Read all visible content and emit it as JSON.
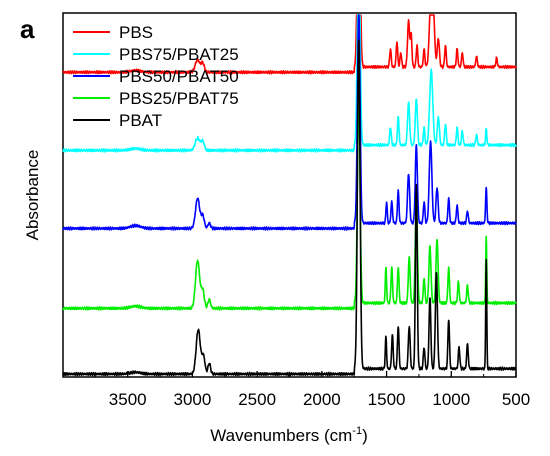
{
  "chart_data": {
    "type": "line",
    "panel_label": "a",
    "xlabel": "Wavenumbers (cm",
    "xlabel_sup": "-1",
    "xlabel_close": ")",
    "ylabel": "Absorbance",
    "xlim": [
      4000,
      500
    ],
    "x_reversed": true,
    "y_ticks_labeled": false,
    "x_ticks": [
      "3500",
      "3000",
      "2500",
      "2000",
      "1500",
      "1000",
      "500"
    ],
    "x_tick_values": [
      3500,
      3000,
      2500,
      2000,
      1500,
      1000,
      500
    ],
    "legend_position": "top-left",
    "series": [
      {
        "name": "PBS",
        "color": "#ff0000",
        "baseline": 8.5,
        "peaks": [
          [
            2960,
            0.35,
            18
          ],
          [
            2920,
            0.25,
            12
          ],
          [
            3440,
            0.05,
            40
          ],
          [
            1715,
            6.8,
            10
          ],
          [
            1470,
            0.5,
            6
          ],
          [
            1420,
            0.7,
            6
          ],
          [
            1390,
            0.4,
            6
          ],
          [
            1330,
            1.3,
            8
          ],
          [
            1310,
            0.9,
            6
          ],
          [
            1265,
            0.6,
            6
          ],
          [
            1210,
            0.5,
            6
          ],
          [
            1150,
            3.0,
            14
          ],
          [
            1100,
            0.8,
            8
          ],
          [
            1045,
            0.6,
            6
          ],
          [
            955,
            0.5,
            6
          ],
          [
            915,
            0.4,
            6
          ],
          [
            805,
            0.3,
            6
          ],
          [
            650,
            0.25,
            6
          ]
        ]
      },
      {
        "name": "PBS75/PBAT25",
        "color": "#00ffff",
        "baseline": 6.3,
        "peaks": [
          [
            2960,
            0.35,
            18
          ],
          [
            2920,
            0.25,
            12
          ],
          [
            3440,
            0.05,
            40
          ],
          [
            1715,
            6.2,
            10
          ],
          [
            1470,
            0.5,
            6
          ],
          [
            1410,
            0.8,
            6
          ],
          [
            1330,
            1.2,
            8
          ],
          [
            1270,
            1.3,
            8
          ],
          [
            1210,
            0.5,
            6
          ],
          [
            1155,
            2.1,
            12
          ],
          [
            1100,
            0.8,
            8
          ],
          [
            1045,
            0.6,
            6
          ],
          [
            955,
            0.5,
            6
          ],
          [
            915,
            0.4,
            6
          ],
          [
            805,
            0.3,
            6
          ],
          [
            730,
            0.45,
            5
          ]
        ]
      },
      {
        "name": "PBS50/PBAT50",
        "color": "#0000ff",
        "baseline": 4.1,
        "peaks": [
          [
            2960,
            0.85,
            16
          ],
          [
            2920,
            0.35,
            12
          ],
          [
            2870,
            0.15,
            10
          ],
          [
            3440,
            0.08,
            40
          ],
          [
            1715,
            6.0,
            10
          ],
          [
            1500,
            0.6,
            5
          ],
          [
            1460,
            0.6,
            6
          ],
          [
            1410,
            0.9,
            6
          ],
          [
            1330,
            1.4,
            8
          ],
          [
            1270,
            2.2,
            8
          ],
          [
            1210,
            0.6,
            6
          ],
          [
            1160,
            2.3,
            10
          ],
          [
            1110,
            1.0,
            8
          ],
          [
            1020,
            0.7,
            6
          ],
          [
            955,
            0.5,
            6
          ],
          [
            875,
            0.35,
            6
          ],
          [
            730,
            1.0,
            5
          ]
        ]
      },
      {
        "name": "PBS25/PBAT75",
        "color": "#00ee00",
        "baseline": 1.85,
        "peaks": [
          [
            2960,
            1.35,
            16
          ],
          [
            2920,
            0.5,
            12
          ],
          [
            2870,
            0.25,
            10
          ],
          [
            3440,
            0.06,
            40
          ],
          [
            1715,
            5.9,
            10
          ],
          [
            1505,
            1.0,
            5
          ],
          [
            1460,
            1.0,
            6
          ],
          [
            1410,
            1.0,
            6
          ],
          [
            1325,
            1.3,
            7
          ],
          [
            1270,
            3.0,
            8
          ],
          [
            1210,
            0.7,
            6
          ],
          [
            1165,
            1.6,
            8
          ],
          [
            1110,
            1.8,
            8
          ],
          [
            1020,
            1.0,
            6
          ],
          [
            945,
            0.6,
            6
          ],
          [
            875,
            0.5,
            6
          ],
          [
            730,
            1.85,
            4
          ]
        ]
      },
      {
        "name": "PBAT",
        "color": "#000000",
        "baseline": 0.0,
        "peaks": [
          [
            2955,
            1.25,
            16
          ],
          [
            2915,
            0.5,
            12
          ],
          [
            2870,
            0.3,
            10
          ],
          [
            3440,
            0.05,
            40
          ],
          [
            1715,
            9.3,
            10
          ],
          [
            1505,
            0.9,
            5
          ],
          [
            1455,
            0.95,
            6
          ],
          [
            1410,
            1.2,
            6
          ],
          [
            1325,
            1.2,
            7
          ],
          [
            1270,
            5.2,
            7
          ],
          [
            1210,
            0.6,
            6
          ],
          [
            1165,
            2.0,
            7
          ],
          [
            1115,
            2.7,
            8
          ],
          [
            1020,
            1.4,
            6
          ],
          [
            940,
            0.6,
            6
          ],
          [
            875,
            0.7,
            6
          ],
          [
            730,
            3.1,
            4
          ]
        ]
      }
    ]
  }
}
